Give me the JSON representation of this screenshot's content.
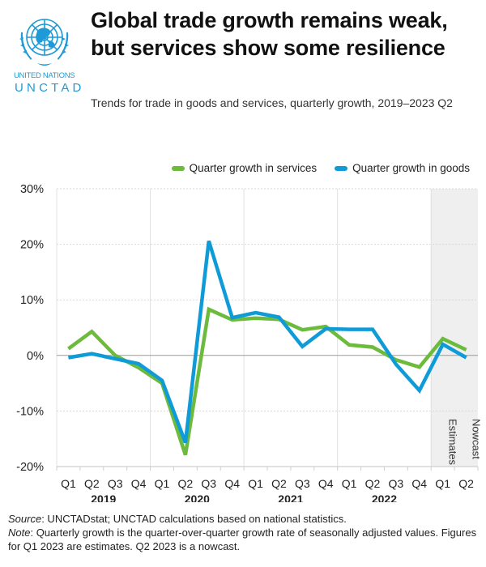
{
  "header": {
    "logo_line1": "UNITED NATIONS",
    "logo_line2": "UNCTAD",
    "title": "Global trade growth remains weak, but services show some resilience",
    "subtitle": "Trends for trade in goods and services, quarterly growth, 2019–2023 Q2"
  },
  "colors": {
    "services": "#6cbb3c",
    "goods": "#0e9bd7",
    "logo": "#1e9ad6",
    "shade": "#efefef"
  },
  "footer": {
    "source_label": "Source",
    "source_text": ": UNCTADstat; UNCTAD calculations based on national statistics.",
    "note_label": "Note",
    "note_text": ": Quarterly growth is the quarter-over-quarter growth rate of seasonally adjusted values. Figures for Q1 2023 are estimates. Q2 2023 is a nowcast."
  },
  "chart_data": {
    "type": "line",
    "title": "Global trade growth remains weak, but services show some resilience",
    "subtitle": "Trends for trade in goods and services, quarterly growth, 2019–2023 Q2",
    "xlabel": "",
    "ylabel": "",
    "categories": [
      "Q1",
      "Q2",
      "Q3",
      "Q4",
      "Q1",
      "Q2",
      "Q3",
      "Q4",
      "Q1",
      "Q2",
      "Q3",
      "Q4",
      "Q1",
      "Q2",
      "Q3",
      "Q4",
      "Q1",
      "Q2"
    ],
    "year_groups": [
      {
        "label": "2019",
        "start": 0,
        "count": 4
      },
      {
        "label": "2020",
        "start": 4,
        "count": 4
      },
      {
        "label": "2021",
        "start": 8,
        "count": 4
      },
      {
        "label": "2022",
        "start": 12,
        "count": 4
      },
      {
        "label": "",
        "start": 16,
        "count": 2
      }
    ],
    "series": [
      {
        "name": "Quarter growth in services",
        "color": "#6cbb3c",
        "values": [
          1.2,
          4.3,
          0.0,
          -2.2,
          -5.0,
          -17.9,
          8.3,
          6.4,
          6.7,
          6.5,
          4.6,
          5.2,
          1.9,
          1.5,
          -0.8,
          -2.1,
          3.0,
          1.0
        ]
      },
      {
        "name": "Quarter growth in goods",
        "color": "#0e9bd7",
        "values": [
          -0.4,
          0.3,
          -0.6,
          -1.5,
          -4.5,
          -15.7,
          20.6,
          6.8,
          7.7,
          6.9,
          1.6,
          4.8,
          4.7,
          4.7,
          -1.6,
          -6.3,
          2.0,
          -0.4
        ]
      }
    ],
    "ylim": [
      -20,
      30
    ],
    "yticks": [
      -20,
      -10,
      0,
      10,
      20,
      30
    ],
    "ytick_labels": [
      "-20%",
      "-10%",
      "0%",
      "10%",
      "20%",
      "30%"
    ],
    "grid": true,
    "legend": "top-right",
    "shaded_regions": [
      {
        "label": "Estimates",
        "index": 16
      },
      {
        "label": "Nowcast",
        "index": 17
      }
    ]
  }
}
